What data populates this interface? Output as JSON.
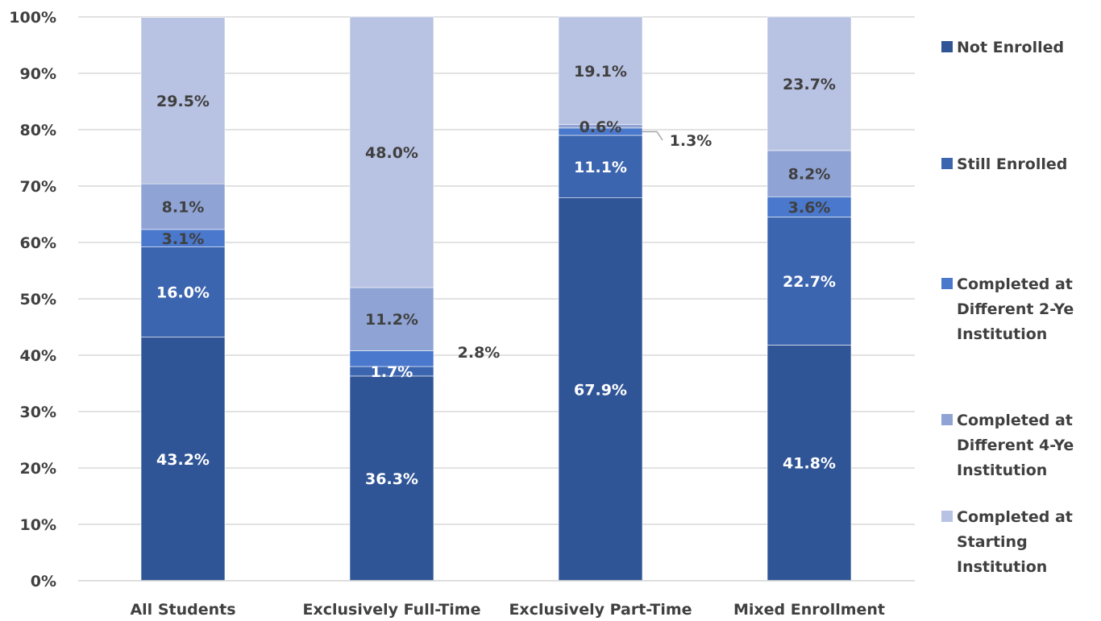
{
  "chart_data": {
    "type": "bar",
    "stacked": true,
    "categories": [
      "All Students",
      "Exclusively Full-Time",
      "Exclusively Part-Time",
      "Mixed Enrollment"
    ],
    "ylim": [
      0,
      100
    ],
    "yticks": [
      "0%",
      "10%",
      "20%",
      "30%",
      "40%",
      "50%",
      "60%",
      "70%",
      "80%",
      "90%",
      "100%"
    ],
    "grid": true,
    "legend_position": "right",
    "series": [
      {
        "name": "Not Enrolled",
        "legend_lines": [
          "Not Enrolled"
        ],
        "color": "#305596",
        "label_color": "#ffffff",
        "values": [
          43.2,
          36.3,
          67.9,
          41.8
        ],
        "labels": [
          "43.2%",
          "36.3%",
          "67.9%",
          "41.8%"
        ]
      },
      {
        "name": "Still Enrolled",
        "legend_lines": [
          "Still Enrolled"
        ],
        "color": "#3c65af",
        "label_color": "#ffffff",
        "values": [
          16.0,
          1.7,
          11.1,
          22.7
        ],
        "labels": [
          "16.0%",
          "1.7%",
          "11.1%",
          "22.7%"
        ]
      },
      {
        "name": "Completed at Different 2-Ye Institution",
        "legend_lines": [
          "Completed at",
          "Different 2-Ye",
          "Institution"
        ],
        "color": "#4a78cc",
        "label_color": "#404040",
        "values": [
          3.1,
          2.8,
          1.3,
          3.6
        ],
        "labels": [
          "3.1%",
          "2.8%",
          "1.3%",
          "3.6%"
        ]
      },
      {
        "name": "Completed at Different 4-Ye Institution",
        "legend_lines": [
          "Completed at",
          "Different 4-Ye",
          "Institution"
        ],
        "color": "#8fa3d4",
        "label_color": "#404040",
        "values": [
          8.1,
          11.2,
          0.6,
          8.2
        ],
        "labels": [
          "8.1%",
          "11.2%",
          "0.6%",
          "8.2%"
        ]
      },
      {
        "name": "Completed at Starting Institution",
        "legend_lines": [
          "Completed at",
          "Starting",
          "Institution"
        ],
        "color": "#b8c2e2",
        "label_color": "#404040",
        "values": [
          29.5,
          48.0,
          19.1,
          23.7
        ],
        "labels": [
          "29.5%",
          "48.0%",
          "19.1%",
          "23.7%"
        ]
      }
    ]
  }
}
